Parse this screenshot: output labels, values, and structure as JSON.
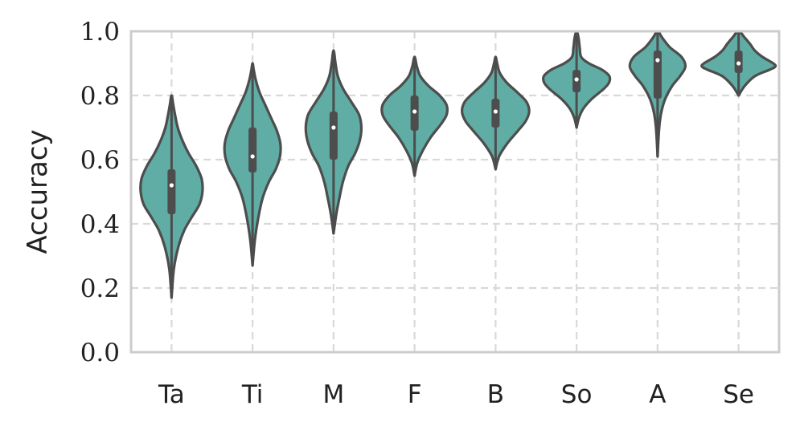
{
  "chart_data": {
    "type": "violin",
    "title": "",
    "xlabel": "",
    "ylabel": "Accuracy",
    "ylim": [
      0.0,
      1.0
    ],
    "yticks": [
      "0.0",
      "0.2",
      "0.4",
      "0.6",
      "0.8",
      "1.0"
    ],
    "grid": true,
    "color": "#5fada5",
    "categories": [
      "Ta",
      "Ti",
      "M",
      "F",
      "B",
      "So",
      "A",
      "Se"
    ],
    "stats": [
      {
        "category": "Ta",
        "min": 0.17,
        "q1": 0.43,
        "median": 0.52,
        "q3": 0.57,
        "max": 0.8
      },
      {
        "category": "Ti",
        "min": 0.27,
        "q1": 0.56,
        "median": 0.61,
        "q3": 0.7,
        "max": 0.9
      },
      {
        "category": "M",
        "min": 0.37,
        "q1": 0.6,
        "median": 0.7,
        "q3": 0.75,
        "max": 0.94
      },
      {
        "category": "F",
        "min": 0.55,
        "q1": 0.69,
        "median": 0.75,
        "q3": 0.8,
        "max": 0.92
      },
      {
        "category": "B",
        "min": 0.57,
        "q1": 0.7,
        "median": 0.75,
        "q3": 0.79,
        "max": 0.92
      },
      {
        "category": "So",
        "min": 0.7,
        "q1": 0.81,
        "median": 0.85,
        "q3": 0.88,
        "max": 1.0
      },
      {
        "category": "A",
        "min": 0.61,
        "q1": 0.79,
        "median": 0.91,
        "q3": 0.94,
        "max": 1.0
      },
      {
        "category": "Se",
        "min": 0.8,
        "q1": 0.87,
        "median": 0.9,
        "q3": 0.94,
        "max": 1.0
      }
    ],
    "density_profiles": [
      [
        [
          0.17,
          0.0
        ],
        [
          0.26,
          0.06
        ],
        [
          0.33,
          0.18
        ],
        [
          0.38,
          0.33
        ],
        [
          0.42,
          0.52
        ],
        [
          0.46,
          0.72
        ],
        [
          0.5,
          0.8
        ],
        [
          0.54,
          0.78
        ],
        [
          0.58,
          0.64
        ],
        [
          0.62,
          0.44
        ],
        [
          0.66,
          0.28
        ],
        [
          0.7,
          0.16
        ],
        [
          0.74,
          0.09
        ],
        [
          0.77,
          0.045
        ],
        [
          0.8,
          0.0
        ]
      ],
      [
        [
          0.27,
          0.0
        ],
        [
          0.35,
          0.06
        ],
        [
          0.42,
          0.15
        ],
        [
          0.48,
          0.26
        ],
        [
          0.53,
          0.42
        ],
        [
          0.57,
          0.6
        ],
        [
          0.61,
          0.71
        ],
        [
          0.65,
          0.72
        ],
        [
          0.69,
          0.63
        ],
        [
          0.73,
          0.48
        ],
        [
          0.77,
          0.33
        ],
        [
          0.81,
          0.18
        ],
        [
          0.85,
          0.08
        ],
        [
          0.88,
          0.03
        ],
        [
          0.9,
          0.0
        ]
      ],
      [
        [
          0.37,
          0.0
        ],
        [
          0.43,
          0.07
        ],
        [
          0.48,
          0.15
        ],
        [
          0.53,
          0.24
        ],
        [
          0.58,
          0.38
        ],
        [
          0.62,
          0.56
        ],
        [
          0.66,
          0.68
        ],
        [
          0.7,
          0.72
        ],
        [
          0.74,
          0.66
        ],
        [
          0.78,
          0.46
        ],
        [
          0.82,
          0.25
        ],
        [
          0.86,
          0.11
        ],
        [
          0.9,
          0.05
        ],
        [
          0.94,
          0.0
        ]
      ],
      [
        [
          0.55,
          0.0
        ],
        [
          0.59,
          0.07
        ],
        [
          0.63,
          0.22
        ],
        [
          0.67,
          0.42
        ],
        [
          0.71,
          0.68
        ],
        [
          0.74,
          0.83
        ],
        [
          0.77,
          0.83
        ],
        [
          0.8,
          0.65
        ],
        [
          0.83,
          0.36
        ],
        [
          0.86,
          0.15
        ],
        [
          0.89,
          0.06
        ],
        [
          0.92,
          0.0
        ]
      ],
      [
        [
          0.57,
          0.0
        ],
        [
          0.61,
          0.09
        ],
        [
          0.65,
          0.3
        ],
        [
          0.69,
          0.58
        ],
        [
          0.72,
          0.78
        ],
        [
          0.75,
          0.87
        ],
        [
          0.78,
          0.8
        ],
        [
          0.81,
          0.56
        ],
        [
          0.84,
          0.29
        ],
        [
          0.87,
          0.11
        ],
        [
          0.9,
          0.04
        ],
        [
          0.92,
          0.0
        ]
      ],
      [
        [
          0.7,
          0.0
        ],
        [
          0.73,
          0.06
        ],
        [
          0.76,
          0.18
        ],
        [
          0.79,
          0.4
        ],
        [
          0.82,
          0.7
        ],
        [
          0.84,
          0.84
        ],
        [
          0.86,
          0.85
        ],
        [
          0.88,
          0.66
        ],
        [
          0.9,
          0.32
        ],
        [
          0.92,
          0.12
        ],
        [
          0.95,
          0.08
        ],
        [
          0.98,
          0.05
        ],
        [
          1.0,
          0.0
        ]
      ],
      [
        [
          0.61,
          0.0
        ],
        [
          0.66,
          0.02
        ],
        [
          0.71,
          0.05
        ],
        [
          0.75,
          0.1
        ],
        [
          0.79,
          0.2
        ],
        [
          0.83,
          0.38
        ],
        [
          0.86,
          0.58
        ],
        [
          0.89,
          0.72
        ],
        [
          0.92,
          0.62
        ],
        [
          0.95,
          0.32
        ],
        [
          0.98,
          0.12
        ],
        [
          1.0,
          0.0
        ]
      ],
      [
        [
          0.8,
          0.0
        ],
        [
          0.83,
          0.16
        ],
        [
          0.86,
          0.42
        ],
        [
          0.88,
          0.8
        ],
        [
          0.89,
          0.95
        ],
        [
          0.9,
          0.9
        ],
        [
          0.92,
          0.62
        ],
        [
          0.94,
          0.42
        ],
        [
          0.96,
          0.3
        ],
        [
          0.98,
          0.16
        ],
        [
          1.0,
          0.0
        ]
      ]
    ]
  }
}
